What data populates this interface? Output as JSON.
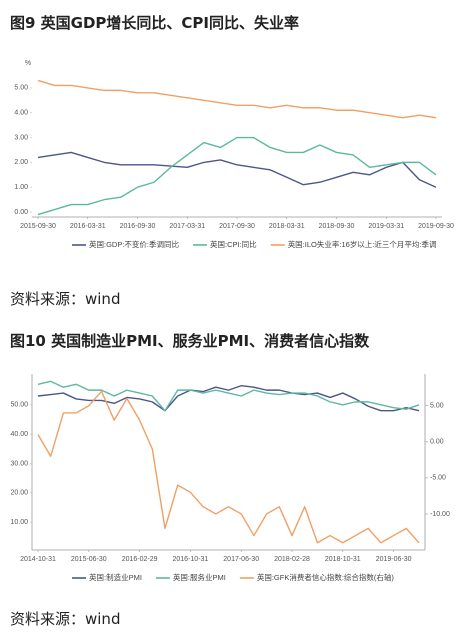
{
  "chart_data": [
    {
      "type": "line",
      "title": "图9 英国GDP增长同比、CPI同比、失业率",
      "source": "资料来源：wind",
      "ylabel": "%",
      "categories": [
        "2015-09-30",
        null,
        null,
        "2016-03-31",
        null,
        null,
        "2016-09-30",
        null,
        null,
        "2017-03-31",
        null,
        null,
        "2017-09-30",
        null,
        null,
        "2018-03-31",
        null,
        null,
        "2018-09-30",
        null,
        null,
        "2019-03-31",
        null,
        null,
        "2019-09-30"
      ],
      "ylim": [
        -0.2,
        5.6
      ],
      "yticks": [
        {
          "value": 0,
          "label": "0.00"
        },
        {
          "value": 1,
          "label": "1.00"
        },
        {
          "value": 2,
          "label": "2.00"
        },
        {
          "value": 3,
          "label": "3.00"
        },
        {
          "value": 4,
          "label": "4.00"
        },
        {
          "value": 5,
          "label": "5.00"
        }
      ],
      "legend": "bottom",
      "series": [
        {
          "name": "英国:GDP:不变价:季调同比",
          "color": "#4a5688",
          "values": [
            2.2,
            2.3,
            2.4,
            2.2,
            2.0,
            1.9,
            1.9,
            1.9,
            1.85,
            1.8,
            2.0,
            2.1,
            1.9,
            1.8,
            1.7,
            1.4,
            1.1,
            1.2,
            1.4,
            1.6,
            1.5,
            1.8,
            2.0,
            1.3,
            1.0
          ]
        },
        {
          "name": "英国:CPI:同比",
          "color": "#5cb89f",
          "values": [
            -0.1,
            0.1,
            0.3,
            0.3,
            0.5,
            0.6,
            1.0,
            1.2,
            1.8,
            2.3,
            2.8,
            2.6,
            3.0,
            3.0,
            2.6,
            2.4,
            2.4,
            2.7,
            2.4,
            2.3,
            1.8,
            1.9,
            2.0,
            2.0,
            1.5
          ]
        },
        {
          "name": "英国:ILO失业率:16岁以上:近三个月平均:季调",
          "color": "#f0a064",
          "values": [
            5.3,
            5.1,
            5.1,
            5.0,
            4.9,
            4.9,
            4.8,
            4.8,
            4.7,
            4.6,
            4.5,
            4.4,
            4.3,
            4.3,
            4.2,
            4.3,
            4.2,
            4.2,
            4.1,
            4.1,
            4.0,
            3.9,
            3.8,
            3.9,
            3.8
          ]
        }
      ]
    },
    {
      "type": "line",
      "title": "图10 英国制造业PMI、服务业PMI、消费者信心指数",
      "source": "资料来源：wind",
      "categories": [
        "2014-10-31",
        null,
        null,
        null,
        "2015-06-30",
        null,
        null,
        null,
        "2016-02-29",
        null,
        null,
        null,
        "2016-10-31",
        null,
        null,
        null,
        "2017-06-30",
        null,
        null,
        null,
        "2018-02-28",
        null,
        null,
        null,
        "2018-10-31",
        null,
        null,
        null,
        "2019-06-30",
        null,
        null
      ],
      "ylim": [
        0.5,
        60.5
      ],
      "yticks": [
        {
          "value": 10,
          "label": "10.00"
        },
        {
          "value": 20,
          "label": "20.00"
        },
        {
          "value": 30,
          "label": "30.00"
        },
        {
          "value": 40,
          "label": "40.00"
        },
        {
          "value": 50,
          "label": "50.00"
        }
      ],
      "y2lim": [
        -15,
        9.4
      ],
      "y2ticks": [
        {
          "value": 5,
          "label": "5.00"
        },
        {
          "value": 0,
          "label": "0.00"
        },
        {
          "value": -5,
          "label": "-5.00"
        },
        {
          "value": -10,
          "label": "-10.00"
        }
      ],
      "legend": "bottom",
      "series": [
        {
          "name": "英国:制造业PMI",
          "color": "#4a5688",
          "values": [
            53,
            53.5,
            54,
            52,
            51.5,
            51.5,
            50.5,
            52.5,
            52,
            51,
            48,
            53,
            55,
            54.5,
            56,
            55,
            56.5,
            56,
            55,
            55,
            54,
            53.5,
            54,
            52.5,
            54,
            52,
            49.5,
            48,
            48,
            49,
            48
          ]
        },
        {
          "name": "英国:服务业PMI",
          "color": "#5cb89f",
          "values": [
            57,
            58,
            56,
            57,
            55,
            55,
            53,
            55,
            54,
            53,
            48,
            55,
            55,
            54,
            55,
            54,
            53,
            55,
            54,
            53.5,
            54,
            54,
            53,
            51,
            50,
            51,
            51,
            50,
            49,
            48.5,
            50
          ]
        },
        {
          "name": "英国:GFK消费者信心指数:综合指数(右轴)",
          "color": "#f0a064",
          "axis": "y2",
          "values": [
            1,
            -2,
            4,
            4,
            5,
            7,
            3,
            6,
            3,
            -1,
            -12,
            -6,
            -7,
            -9,
            -10,
            -9,
            -10,
            -13,
            -10,
            -9,
            -13,
            -9,
            -14,
            -13,
            -14,
            -13,
            -12,
            -14,
            -13,
            -12,
            -14
          ]
        }
      ]
    }
  ]
}
